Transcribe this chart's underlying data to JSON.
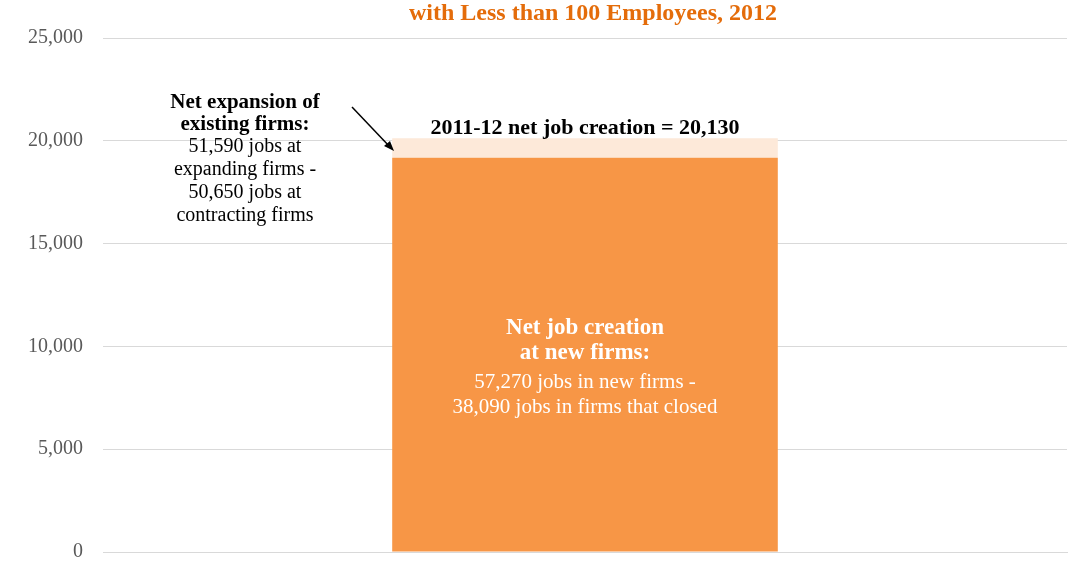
{
  "chart_data": {
    "type": "bar",
    "title": "with Less than 100 Employees, 2012",
    "stacked": true,
    "categories": [
      null
    ],
    "series": [
      {
        "color": "#f79646",
        "values": [
          19180
        ]
      },
      {
        "color": "#fde9d9",
        "values": [
          950
        ]
      }
    ],
    "ylim": [
      0,
      25000
    ],
    "yticks": [
      {
        "value": 0,
        "label": "0"
      },
      {
        "value": 5000,
        "label": "5,000"
      },
      {
        "value": 10000,
        "label": "10,000"
      },
      {
        "value": 15000,
        "label": "15,000"
      },
      {
        "value": 20000,
        "label": "20,000"
      },
      {
        "value": 25000,
        "label": "25,000"
      }
    ],
    "grid": "y",
    "legend": false,
    "tick_labels": "y",
    "annotations": [
      {
        "text": "2011-12 net job creation = 20,130",
        "y": 20130
      },
      "Net expansion of\nexisting firms:",
      "51,590 jobs at\nexpanding firms -\n50,650 jobs at\ncontracting firms",
      "Net job creation\nat new firms:",
      "57,270 jobs in new firms -\n38,090 jobs in firms that closed"
    ]
  }
}
